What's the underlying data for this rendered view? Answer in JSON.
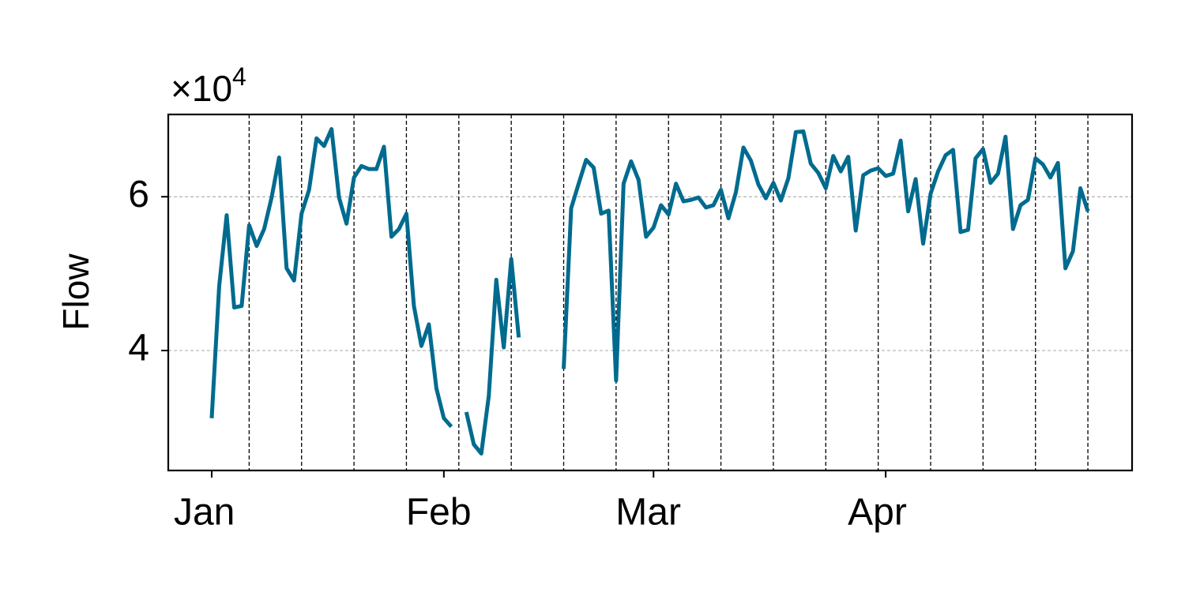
{
  "chart_data": {
    "type": "line",
    "ylabel": "Flow",
    "offset_text": {
      "base": "×10",
      "exponent": "4"
    },
    "x": [
      0,
      1,
      2,
      3,
      4,
      5,
      6,
      7,
      8,
      9,
      10,
      11,
      12,
      13,
      14,
      15,
      16,
      17,
      18,
      19,
      20,
      21,
      22,
      23,
      24,
      25,
      26,
      27,
      28,
      29,
      30,
      31,
      32,
      33,
      34,
      35,
      36,
      37,
      38,
      39,
      40,
      41,
      42,
      43,
      44,
      45,
      46,
      47,
      48,
      49,
      50,
      51,
      52,
      53,
      54,
      55,
      56,
      57,
      58,
      59,
      60,
      61,
      62,
      63,
      64,
      65,
      66,
      67,
      68,
      69,
      70,
      71,
      72,
      73,
      74,
      75,
      76,
      77,
      78,
      79,
      80,
      81,
      82,
      83,
      84,
      85,
      86,
      87,
      88,
      89,
      90,
      91,
      92,
      93,
      94,
      95,
      96,
      97,
      98,
      99,
      100,
      101,
      102,
      103,
      104,
      105,
      106,
      107,
      108,
      109,
      110,
      111,
      112,
      113,
      114,
      115,
      116,
      117
    ],
    "series": [
      {
        "color": "#006b8f",
        "values": [
          3.12,
          4.84,
          5.76,
          4.56,
          4.58,
          5.63,
          5.36,
          5.58,
          5.99,
          6.51,
          5.07,
          4.91,
          5.78,
          6.09,
          6.76,
          6.66,
          6.88,
          5.99,
          5.65,
          6.25,
          6.4,
          6.36,
          6.36,
          6.65,
          5.48,
          5.58,
          5.78,
          4.58,
          4.06,
          4.34,
          3.51,
          3.12,
          3.01,
          null,
          3.2,
          2.78,
          2.66,
          3.41,
          4.92,
          4.04,
          5.19,
          4.17,
          null,
          null,
          null,
          null,
          null,
          3.76,
          5.85,
          6.17,
          6.48,
          6.38,
          5.78,
          5.82,
          3.61,
          6.17,
          6.46,
          6.22,
          5.48,
          5.6,
          5.89,
          5.77,
          6.17,
          5.94,
          5.96,
          5.99,
          5.86,
          5.89,
          6.09,
          5.72,
          6.06,
          6.64,
          6.47,
          6.16,
          5.98,
          6.18,
          5.95,
          6.24,
          6.84,
          6.85,
          6.43,
          6.31,
          6.11,
          6.53,
          6.33,
          6.52,
          5.56,
          6.28,
          6.34,
          6.37,
          6.27,
          6.3,
          6.73,
          5.81,
          6.23,
          5.39,
          6.04,
          6.33,
          6.54,
          6.61,
          5.54,
          5.57,
          6.5,
          6.62,
          6.18,
          6.3,
          6.78,
          5.58,
          5.89,
          5.96,
          6.5,
          6.42,
          6.25,
          6.44,
          5.07,
          5.29,
          6.11,
          5.81
        ]
      }
    ],
    "xlim": [
      -5.8,
      122.9
    ],
    "ylim": [
      2.44,
      7.07
    ],
    "xticks": [
      {
        "value": 0,
        "label": "Jan"
      },
      {
        "value": 31,
        "label": "Feb"
      },
      {
        "value": 59,
        "label": "Mar"
      },
      {
        "value": 90,
        "label": "Apr"
      }
    ],
    "yticks": [
      4,
      6
    ],
    "grid": true,
    "vlines": [
      5,
      12,
      19,
      26,
      33,
      40,
      47,
      54,
      61,
      68,
      75,
      82,
      89,
      96,
      103,
      110,
      117
    ]
  }
}
